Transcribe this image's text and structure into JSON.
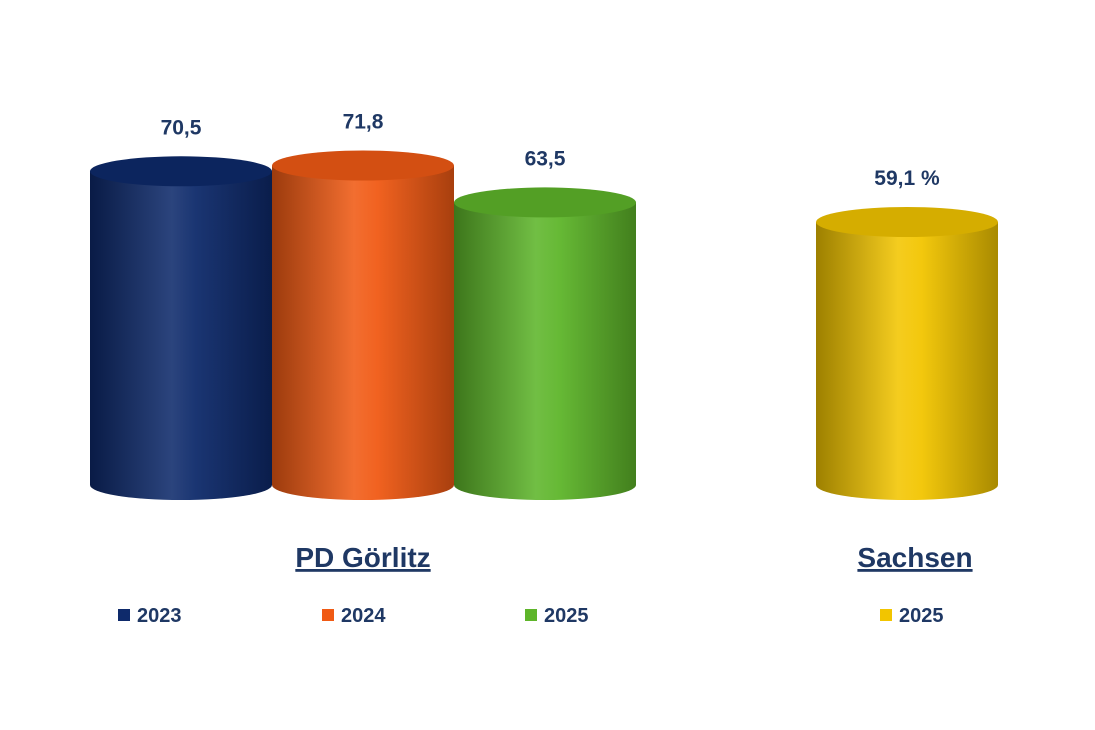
{
  "chart_data": {
    "type": "bar",
    "style": "3d-cylinder",
    "groups": [
      {
        "label": "PD Görlitz",
        "bars": [
          {
            "series": "2023",
            "value": 70.5,
            "label": "70,5",
            "color": "#0e2a6b"
          },
          {
            "series": "2024",
            "value": 71.8,
            "label": "71,8",
            "color": "#f05a14"
          },
          {
            "series": "2025",
            "value": 63.5,
            "label": "63,5",
            "color": "#5eb52a"
          }
        ],
        "legend": [
          {
            "name": "2023",
            "color": "#0e2a6b"
          },
          {
            "name": "2024",
            "color": "#f05a14"
          },
          {
            "name": "2025",
            "color": "#5eb52a"
          }
        ]
      },
      {
        "label": "Sachsen",
        "bars": [
          {
            "series": "2025",
            "value": 59.1,
            "label": "59,1 %",
            "color": "#f2c500"
          }
        ],
        "legend": [
          {
            "name": "2025",
            "color": "#f2c500"
          }
        ]
      }
    ],
    "ylim": [
      0,
      100
    ],
    "grid": false,
    "legend_position": "bottom"
  }
}
